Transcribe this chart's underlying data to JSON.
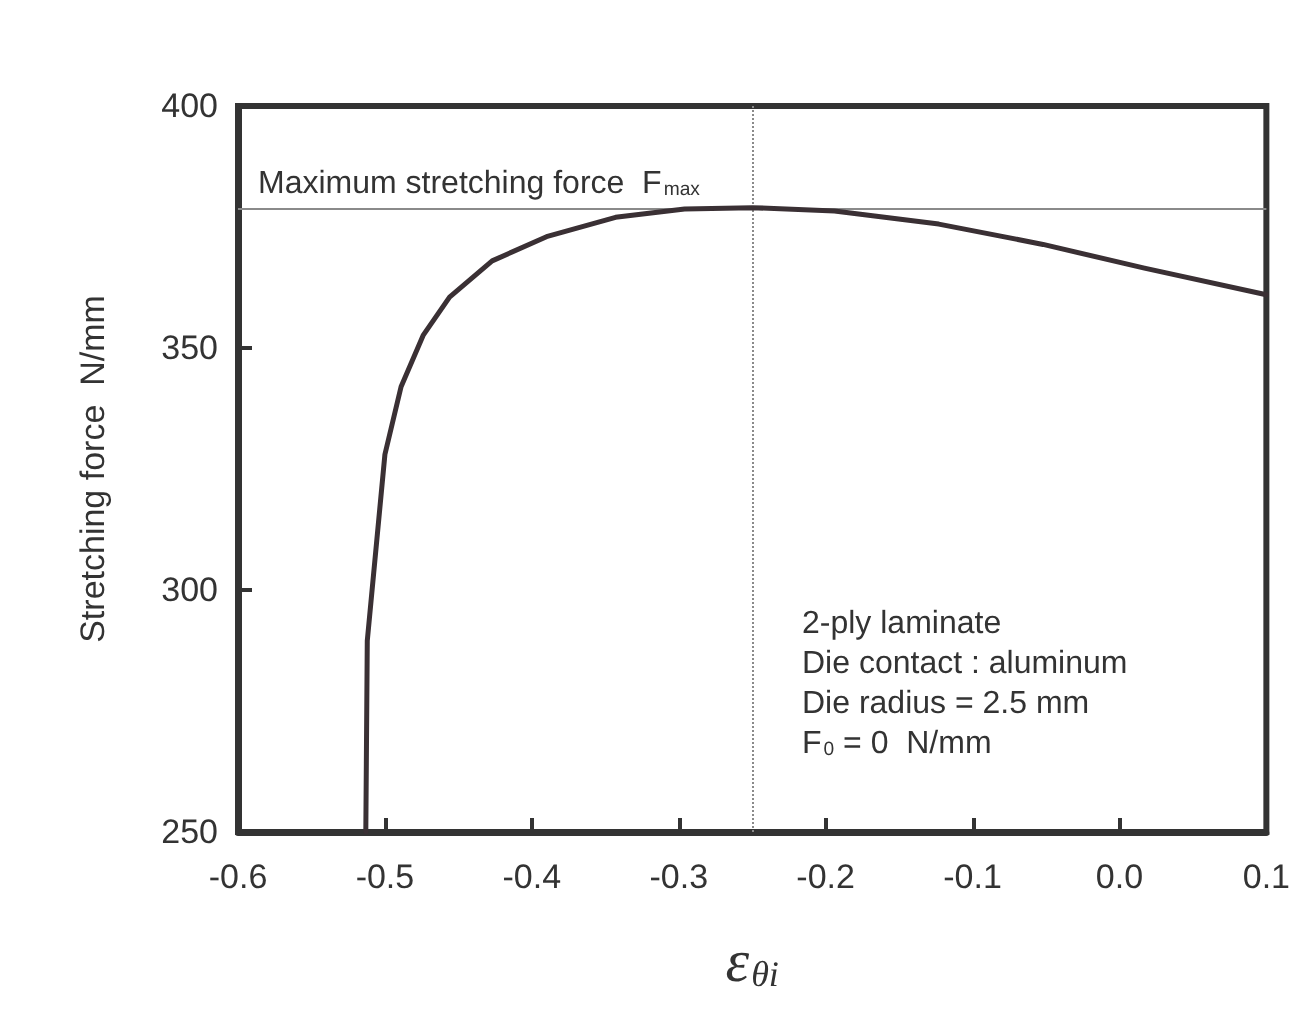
{
  "chart_data": {
    "type": "line",
    "xlabel": "ε$_{θi}$",
    "ylabel": "Stretching force  N/mm",
    "x": [
      -0.513,
      -0.512,
      -0.5,
      -0.489,
      -0.474,
      -0.456,
      -0.427,
      -0.39,
      -0.343,
      -0.296,
      -0.25,
      -0.194,
      -0.123,
      -0.052,
      0.017,
      0.1
    ],
    "series": [
      {
        "color": "#3a3034",
        "values": [
          250,
          289.5,
          328,
          342,
          352.6,
          360.5,
          368,
          373,
          377,
          378.7,
          379,
          378.3,
          375.6,
          371.4,
          366.5,
          361
        ]
      }
    ],
    "xlim": [
      -0.6,
      0.1
    ],
    "xticks": [
      {
        "value": -0.6,
        "label": "-0.6"
      },
      {
        "value": -0.5,
        "label": "-0.5"
      },
      {
        "value": -0.4,
        "label": "-0.4"
      },
      {
        "value": -0.3,
        "label": "-0.3"
      },
      {
        "value": -0.2,
        "label": "-0.2"
      },
      {
        "value": -0.1,
        "label": "-0.1"
      },
      {
        "value": 0,
        "label": "0.0"
      },
      {
        "value": 0.1,
        "label": "0.1"
      }
    ],
    "ylim": [
      250,
      400
    ],
    "yticks": [
      250,
      300,
      350,
      400
    ],
    "ref_lines": [
      {
        "axis": "y",
        "value": 379,
        "label": "Maximum stretching force  F$_{max}$",
        "color": "#8a8a8a",
        "line_style": "solid"
      },
      {
        "axis": "x",
        "value": -0.25,
        "label": null,
        "color": "#8a8a8a",
        "line_style": "dotted"
      }
    ],
    "annotations": [
      "2-ply laminate",
      "Die contact : aluminum",
      "Die radius = 2.5 mm",
      "F$_{0}$ = 0  N/mm"
    ],
    "grid": false,
    "marker": "none",
    "line_style": "solid"
  }
}
